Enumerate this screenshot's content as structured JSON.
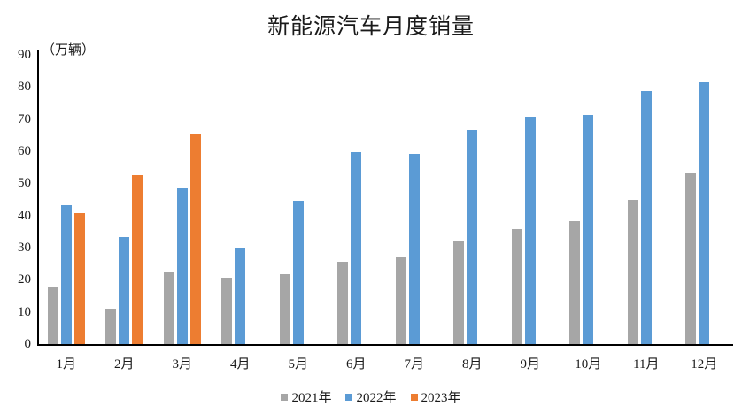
{
  "title": "新能源汽车月度销量",
  "y_axis_unit_label": "（万辆）",
  "chart_data": {
    "type": "bar",
    "title": "新能源汽车月度销量",
    "ylabel": "（万辆）",
    "xlabel": "",
    "categories": [
      "1月",
      "2月",
      "3月",
      "4月",
      "5月",
      "6月",
      "7月",
      "8月",
      "9月",
      "10月",
      "11月",
      "12月"
    ],
    "series": [
      {
        "name": "2021年",
        "color": "#A6A6A6",
        "values": [
          17.9,
          11.0,
          22.6,
          20.6,
          21.7,
          25.6,
          27.1,
          32.1,
          35.7,
          38.3,
          45.0,
          53.1
        ]
      },
      {
        "name": "2022年",
        "color": "#5B9BD5",
        "values": [
          43.1,
          33.4,
          48.4,
          29.9,
          44.7,
          59.6,
          59.3,
          66.6,
          70.8,
          71.4,
          78.6,
          81.4
        ]
      },
      {
        "name": "2023年",
        "color": "#ED7D31",
        "values": [
          40.8,
          52.5,
          65.3,
          null,
          null,
          null,
          null,
          null,
          null,
          null,
          null,
          null
        ]
      }
    ],
    "ylim": [
      0,
      90
    ],
    "y_ticks": [
      0,
      10,
      20,
      30,
      40,
      50,
      60,
      70,
      80,
      90
    ],
    "grid": false,
    "legend_position": "bottom",
    "axis_color": "#000000"
  }
}
